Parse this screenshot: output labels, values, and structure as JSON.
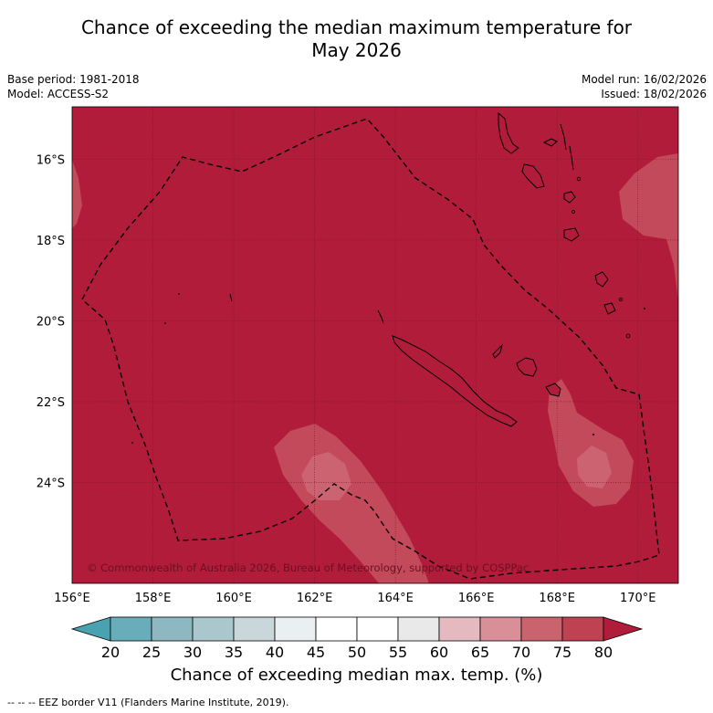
{
  "title_line1": "Chance of exceeding the median maximum temperature for",
  "title_line2": "May 2026",
  "meta_left": {
    "base_period": "Base period: 1981-2018",
    "model": "Model: ACCESS-S2"
  },
  "meta_right": {
    "model_run": "Model run: 16/02/2026",
    "issued": "Issued: 18/02/2026"
  },
  "map": {
    "lon_labels": [
      "156°E",
      "158°E",
      "160°E",
      "162°E",
      "164°E",
      "166°E",
      "168°E",
      "170°E"
    ],
    "lat_labels": [
      "16°S",
      "18°S",
      "20°S",
      "22°S",
      "24°S"
    ],
    "copyright": "© Commonwealth of Australia 2026, Bureau of Meteorology, supported by COSPPac",
    "background_color": "#b11c3b"
  },
  "colorbar": {
    "ticks": [
      "20",
      "25",
      "30",
      "35",
      "40",
      "45",
      "50",
      "55",
      "60",
      "65",
      "70",
      "75",
      "80"
    ],
    "colors": [
      "#49a2b0",
      "#69adbb",
      "#8db8c2",
      "#a9c7cc",
      "#c9d7db",
      "#eaf0f2",
      "#ffffff",
      "#ffffff",
      "#e9e9e9",
      "#e4bac0",
      "#d88f97",
      "#c9646f",
      "#bf4252",
      "#b11c3b"
    ],
    "label": "Chance of exceeding median max. temp. (%)"
  },
  "footer": "--  --  -- EEZ border V11 (Flanders Marine Institute, 2019)."
}
